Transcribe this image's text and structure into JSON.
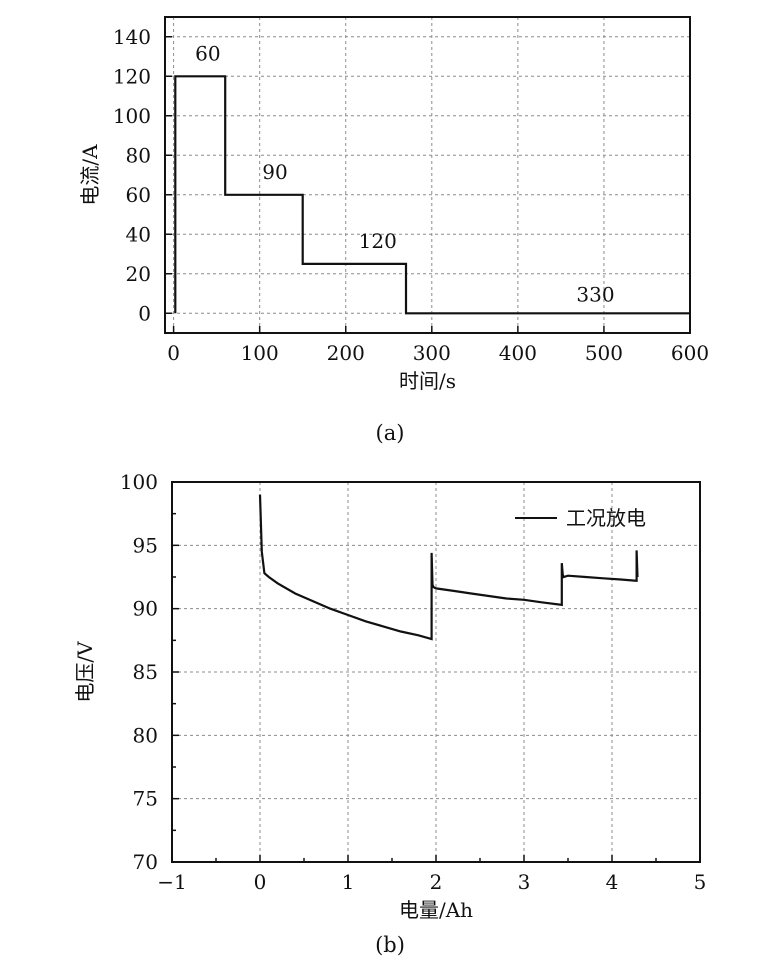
{
  "chart_data": [
    {
      "type": "line",
      "caption": "(a)",
      "xlabel": "时间/s",
      "ylabel": "电流/A",
      "xlim": [
        -10,
        600
      ],
      "ylim": [
        -10,
        150
      ],
      "xticks": [
        0,
        100,
        200,
        300,
        400,
        500,
        600
      ],
      "yticks": [
        0,
        20,
        40,
        60,
        80,
        100,
        120,
        140
      ],
      "grid": true,
      "series": [
        {
          "x": [
            2,
            2,
            60,
            60,
            150,
            150,
            270,
            270,
            600
          ],
          "y": [
            0,
            120,
            120,
            60,
            60,
            25,
            25,
            0,
            0
          ]
        }
      ],
      "annotations": [
        {
          "text": "60",
          "x": 25,
          "y": 128
        },
        {
          "text": "90",
          "x": 103,
          "y": 68
        },
        {
          "text": "120",
          "x": 215,
          "y": 33
        },
        {
          "text": "330",
          "x": 468,
          "y": 6
        }
      ]
    },
    {
      "type": "line",
      "caption": "(b)",
      "xlabel": "电量/Ah",
      "ylabel": "电压/V",
      "xlim": [
        -1,
        5
      ],
      "ylim": [
        70,
        100
      ],
      "xticks": [
        -1,
        0,
        1,
        2,
        3,
        4,
        5
      ],
      "xtick_labels": [
        "−1",
        "0",
        "1",
        "2",
        "3",
        "4",
        "5"
      ],
      "yticks": [
        70,
        75,
        80,
        85,
        90,
        95,
        100
      ],
      "grid": true,
      "legend_position": "top-right",
      "series": [
        {
          "name": "工况放电",
          "x": [
            0.0,
            0.02,
            0.05,
            0.1,
            0.2,
            0.4,
            0.6,
            0.8,
            1.0,
            1.2,
            1.4,
            1.6,
            1.8,
            1.95,
            1.95,
            1.96,
            1.97,
            2.0,
            2.2,
            2.4,
            2.6,
            2.8,
            3.0,
            3.2,
            3.43,
            3.43,
            3.44,
            3.45,
            3.5,
            3.7,
            3.9,
            4.1,
            4.28,
            4.28,
            4.29
          ],
          "y": [
            99.0,
            94.5,
            92.8,
            92.5,
            92.0,
            91.2,
            90.6,
            90.0,
            89.5,
            89.0,
            88.6,
            88.2,
            87.9,
            87.6,
            94.4,
            91.9,
            91.7,
            91.6,
            91.4,
            91.2,
            91.0,
            90.8,
            90.7,
            90.5,
            90.3,
            93.6,
            92.7,
            92.5,
            92.6,
            92.5,
            92.4,
            92.3,
            92.2,
            94.6,
            92.5
          ]
        }
      ]
    }
  ]
}
